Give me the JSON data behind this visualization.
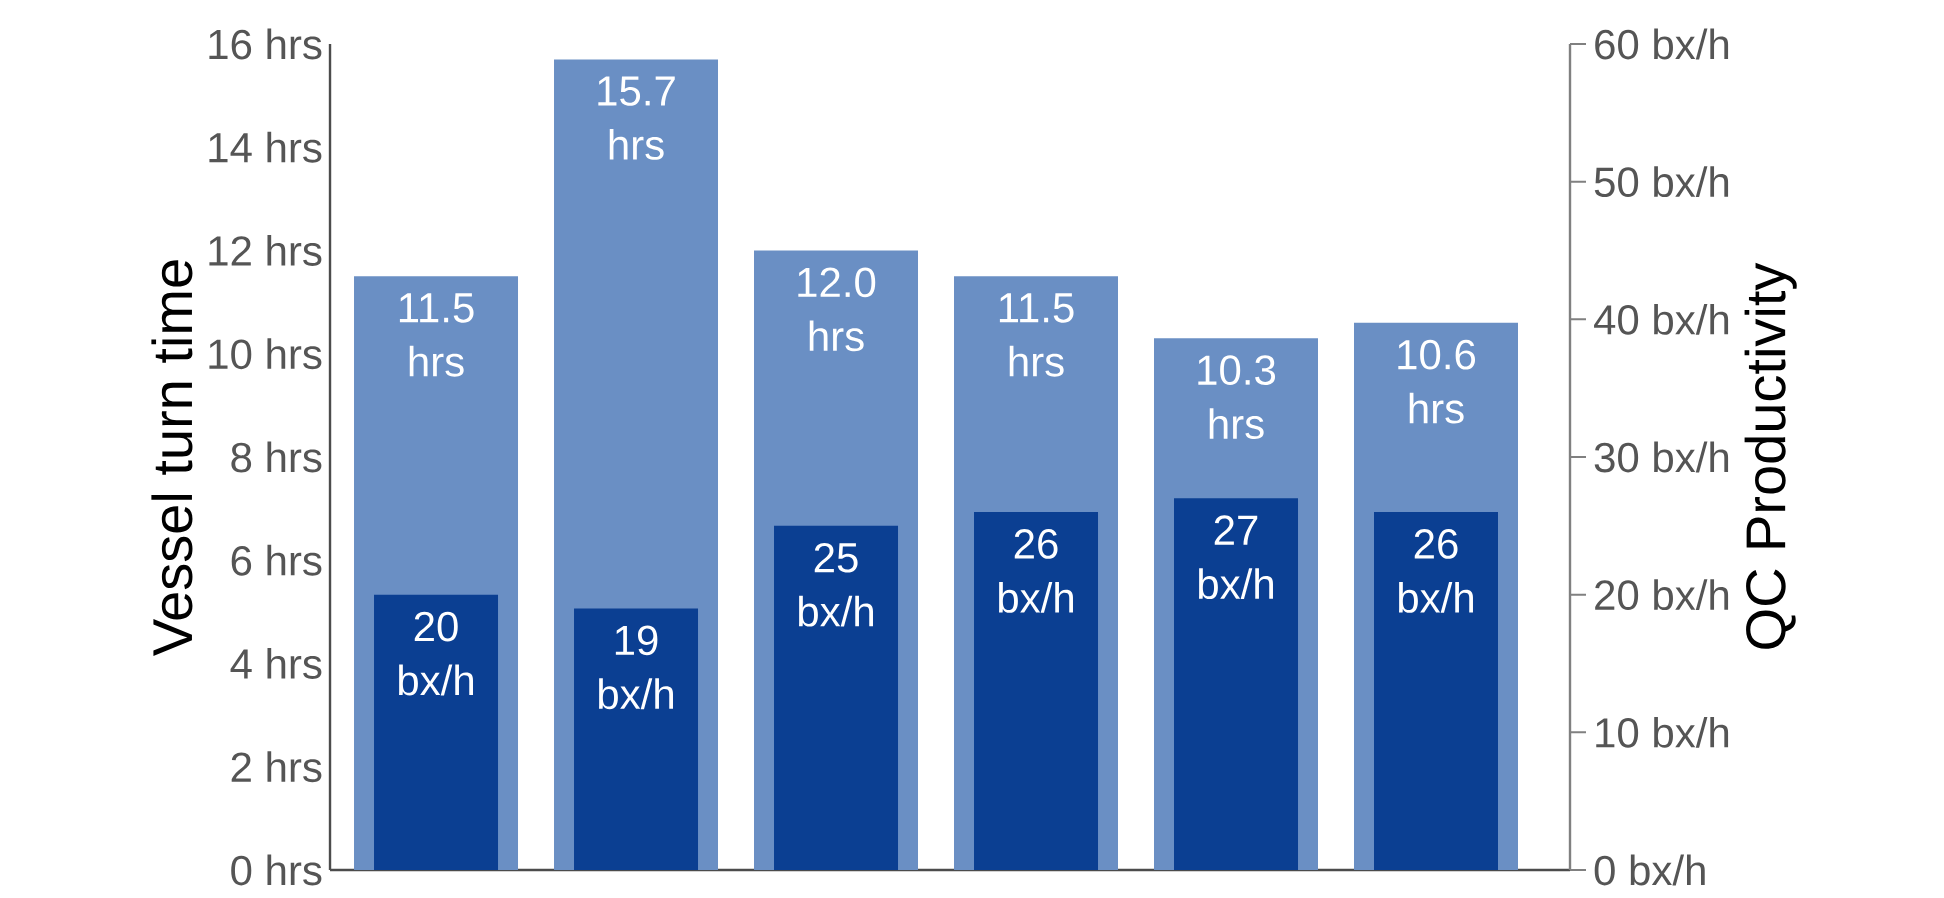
{
  "chart_data": {
    "type": "bar",
    "categories": [
      null,
      null,
      null,
      null,
      null,
      null
    ],
    "ylabel": "Vessel turn time",
    "y2label": "QC Productivity",
    "ylim": [
      0,
      16
    ],
    "yticks": [
      {
        "value": 0,
        "label": "0 hrs"
      },
      {
        "value": 2,
        "label": "2 hrs"
      },
      {
        "value": 4,
        "label": "4 hrs"
      },
      {
        "value": 6,
        "label": "6 hrs"
      },
      {
        "value": 8,
        "label": "8 hrs"
      },
      {
        "value": 10,
        "label": "10 hrs"
      },
      {
        "value": 12,
        "label": "12 hrs"
      },
      {
        "value": 14,
        "label": "14 hrs"
      },
      {
        "value": 16,
        "label": "16 hrs"
      }
    ],
    "y2lim": [
      0,
      60
    ],
    "y2ticks": [
      {
        "value": 0,
        "label": "0 bx/h"
      },
      {
        "value": 10,
        "label": "10 bx/h"
      },
      {
        "value": 20,
        "label": "20 bx/h"
      },
      {
        "value": 30,
        "label": "30 bx/h"
      },
      {
        "value": 40,
        "label": "40 bx/h"
      },
      {
        "value": 50,
        "label": "50 bx/h"
      },
      {
        "value": 60,
        "label": "60 bx/h"
      }
    ],
    "series": [
      {
        "color": "#6a8fc4",
        "values": [
          11.5,
          15.7,
          12.0,
          11.5,
          10.3,
          10.6
        ],
        "value_labels": [
          "11.5 hrs",
          "15.7 hrs",
          "12.0 hrs",
          "11.5 hrs",
          "10.3 hrs",
          "10.6 hrs"
        ]
      },
      {
        "color": "#0b3f92",
        "axis": "y2",
        "values": [
          20,
          19,
          25,
          26,
          27,
          26
        ],
        "value_labels": [
          "20 bx/h",
          "19 bx/h",
          "25 bx/h",
          "26 bx/h",
          "27 bx/h",
          "26 bx/h"
        ]
      }
    ]
  }
}
